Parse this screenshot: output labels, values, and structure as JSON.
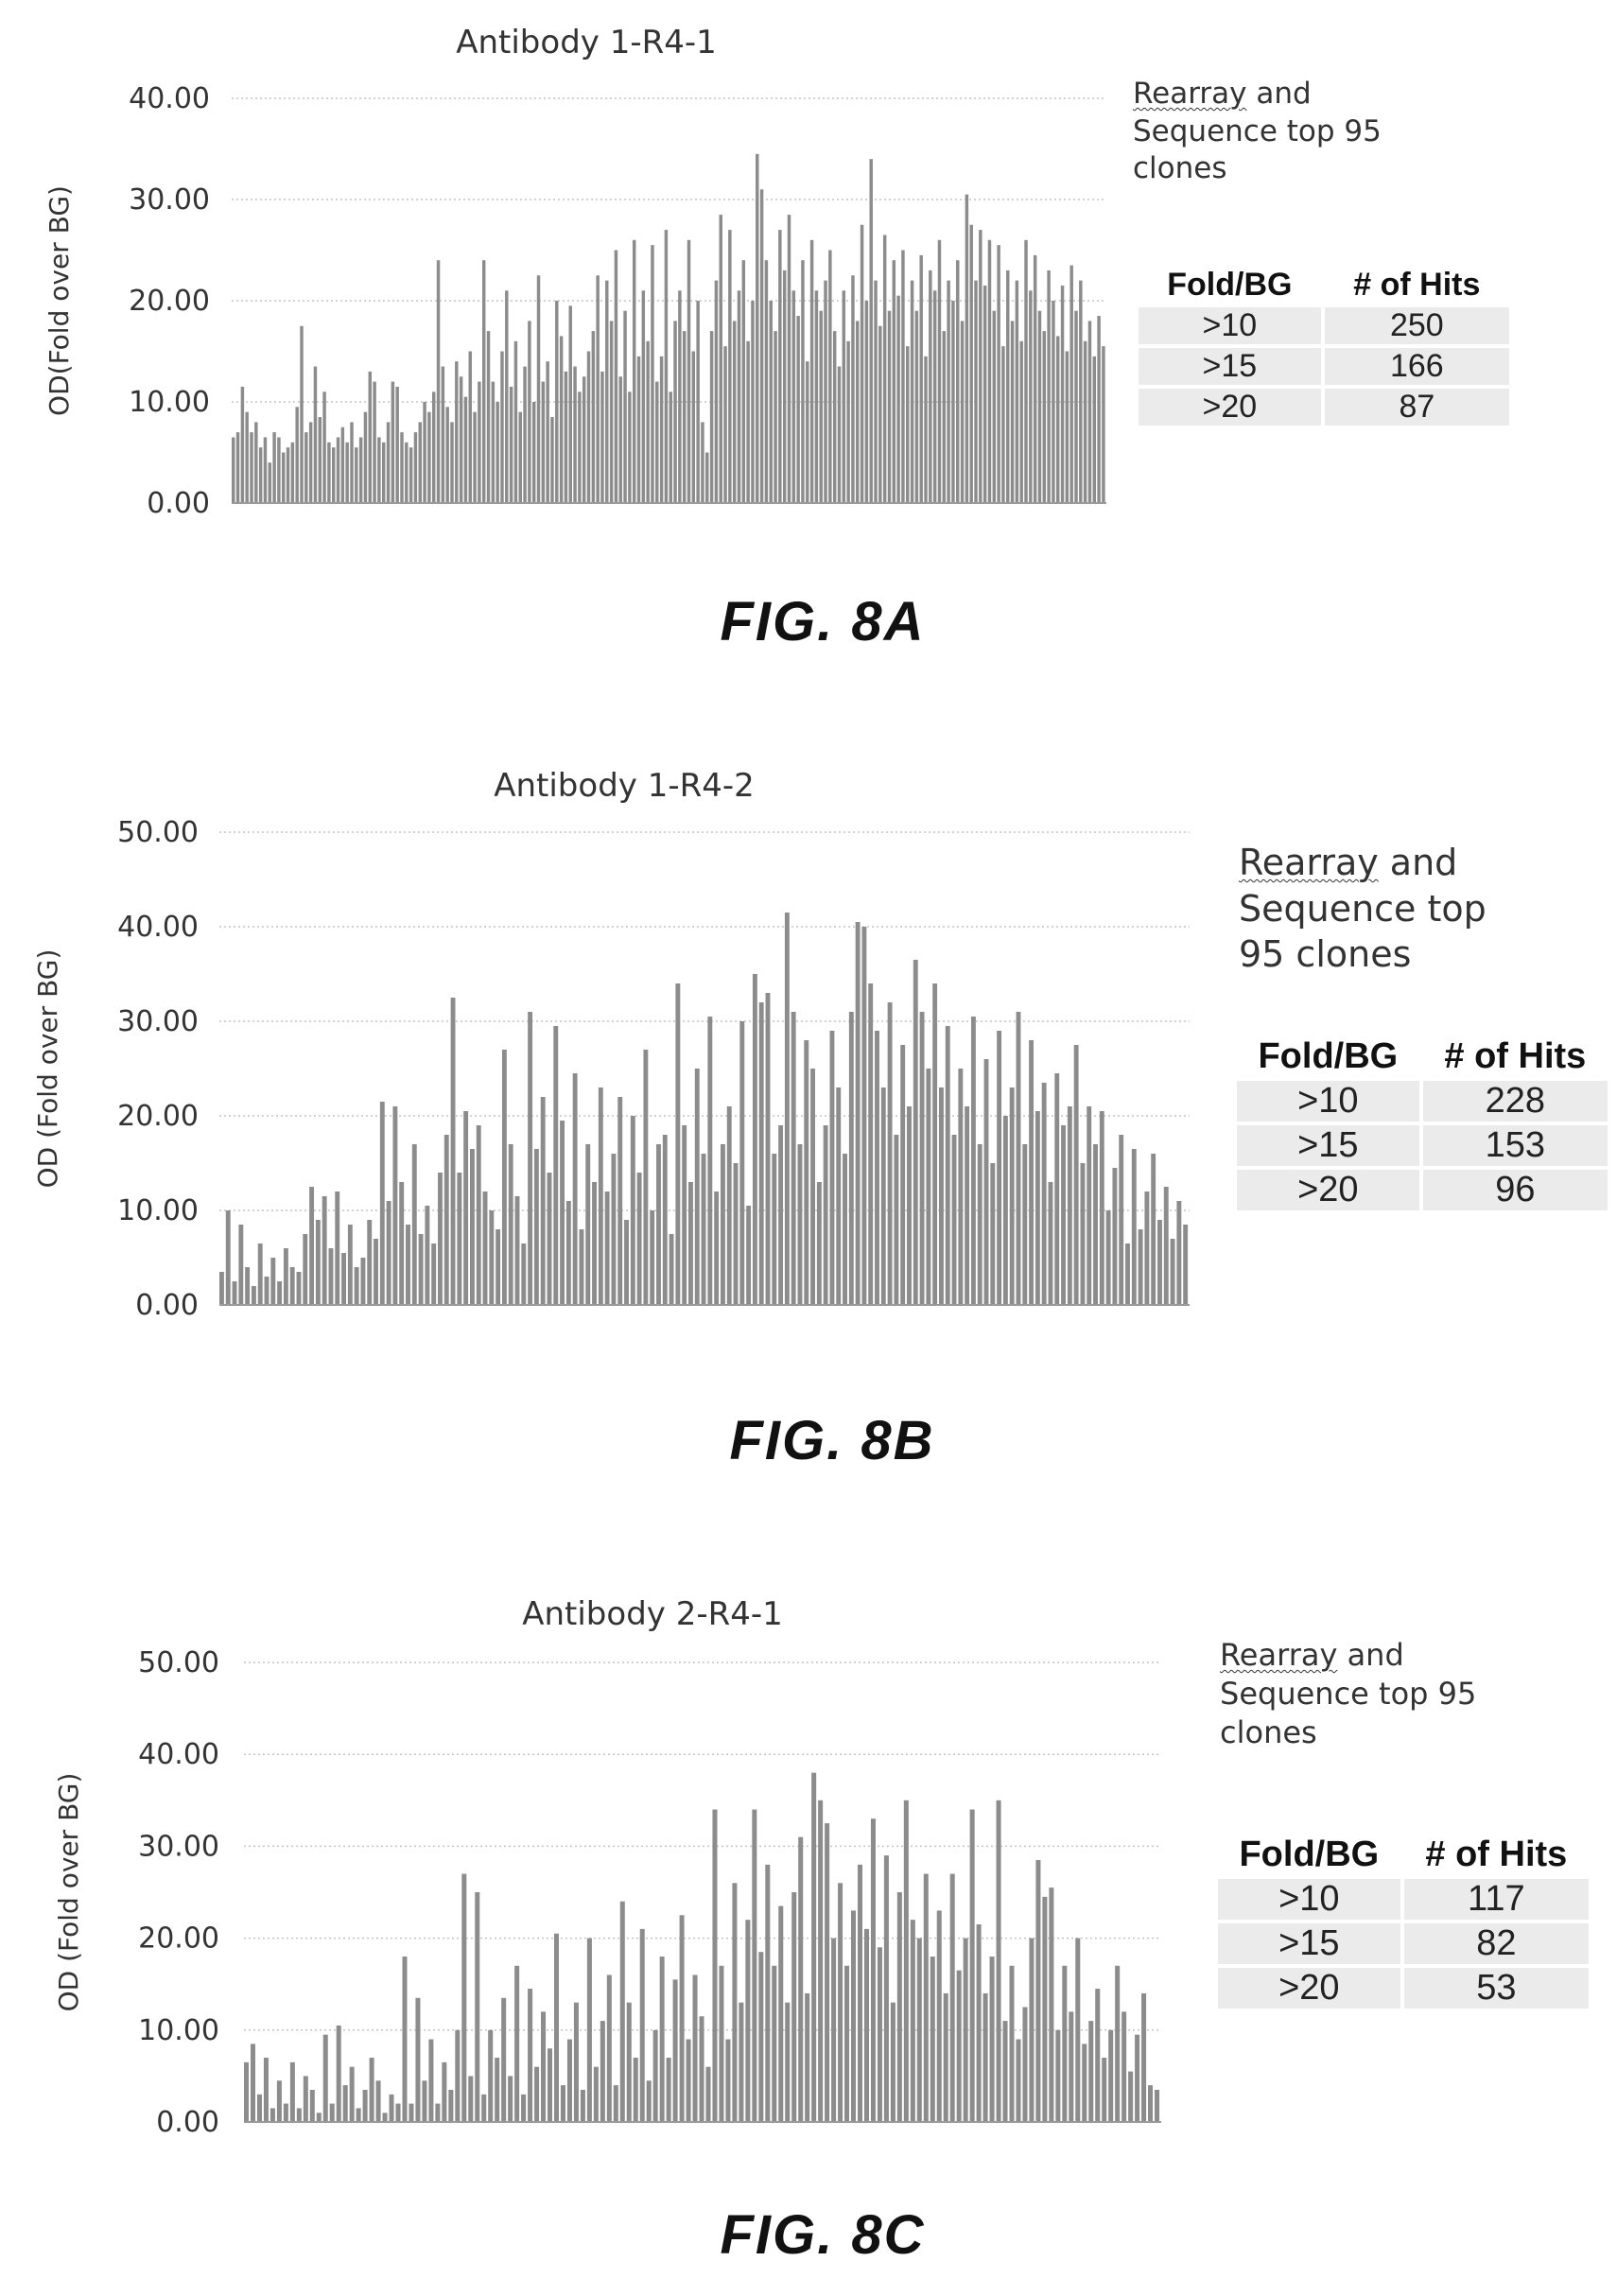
{
  "figures": [
    {
      "fig_label": "FIG. 8A",
      "note": {
        "line1_underlined": "Rearray",
        "line1_rest": " and",
        "line2": "Sequence top 95",
        "line3": "clones"
      },
      "table": {
        "headers": [
          "Fold/BG",
          "# of Hits"
        ],
        "rows": [
          [
            ">10",
            "250"
          ],
          [
            ">15",
            "166"
          ],
          [
            ">20",
            "87"
          ]
        ]
      }
    },
    {
      "fig_label": "FIG. 8B",
      "note": {
        "line1_underlined": "Rearray",
        "line1_rest": " and",
        "line2": "Sequence top",
        "line3": "95 clones"
      },
      "table": {
        "headers": [
          "Fold/BG",
          "# of Hits"
        ],
        "rows": [
          [
            ">10",
            "228"
          ],
          [
            ">15",
            "153"
          ],
          [
            ">20",
            "96"
          ]
        ]
      }
    },
    {
      "fig_label": "FIG. 8C",
      "note": {
        "line1_underlined": "Rearray",
        "line1_rest": " and",
        "line2": "Sequence top 95",
        "line3": "clones"
      },
      "table": {
        "headers": [
          "Fold/BG",
          "# of Hits"
        ],
        "rows": [
          [
            ">10",
            "117"
          ],
          [
            ">15",
            "82"
          ],
          [
            ">20",
            "53"
          ]
        ]
      }
    }
  ],
  "chart_data": [
    {
      "type": "bar",
      "title": "Antibody 1-R4-1",
      "ylabel": "OD(Fold over BG)",
      "xlabel": "",
      "ylim": [
        0,
        40
      ],
      "yticks": [
        "0.00",
        "10.00",
        "20.00",
        "30.00",
        "40.00"
      ],
      "grid": true,
      "bar_color": "#8c8c8c",
      "values": [
        6.5,
        7.0,
        11.5,
        9.0,
        7.0,
        8.0,
        5.5,
        6.5,
        4.0,
        7.0,
        6.5,
        5.0,
        5.5,
        6.0,
        9.5,
        17.5,
        7.0,
        8.0,
        13.5,
        8.5,
        11.0,
        6.0,
        5.5,
        6.5,
        7.5,
        6.0,
        8.0,
        5.5,
        6.5,
        9.0,
        13.0,
        12.0,
        6.5,
        6.0,
        8.0,
        12.0,
        11.5,
        7.0,
        6.0,
        5.5,
        7.0,
        8.0,
        10.0,
        9.0,
        11.0,
        24.0,
        13.5,
        9.5,
        8.0,
        14.0,
        12.5,
        10.5,
        15.0,
        9.0,
        12.0,
        24.0,
        17.0,
        12.0,
        10.0,
        15.0,
        21.0,
        11.5,
        16.0,
        9.0,
        13.5,
        18.0,
        10.0,
        22.5,
        12.0,
        14.0,
        8.5,
        20.0,
        16.5,
        13.0,
        19.5,
        13.5,
        11.0,
        12.5,
        15.0,
        17.0,
        22.5,
        13.0,
        22.0,
        18.0,
        25.0,
        12.5,
        19.0,
        11.0,
        26.0,
        14.5,
        21.0,
        16.0,
        25.5,
        12.0,
        14.5,
        27.0,
        11.0,
        18.0,
        21.0,
        17.0,
        26.0,
        15.0,
        20.0,
        8.0,
        5.0,
        17.0,
        22.0,
        28.5,
        15.5,
        27.0,
        18.0,
        21.0,
        24.0,
        16.0,
        20.0,
        34.5,
        31.0,
        24.0,
        20.0,
        17.0,
        27.0,
        23.0,
        28.5,
        21.0,
        18.5,
        24.0,
        14.0,
        26.0,
        21.0,
        19.0,
        22.0,
        25.0,
        17.0,
        13.5,
        21.0,
        16.0,
        22.5,
        18.0,
        27.5,
        20.0,
        34.0,
        22.0,
        17.5,
        26.5,
        19.0,
        24.0,
        20.5,
        25.0,
        15.5,
        22.0,
        19.0,
        24.5,
        14.5,
        23.0,
        21.0,
        26.0,
        17.0,
        22.0,
        20.0,
        24.0,
        18.0,
        30.5,
        27.5,
        22.0,
        27.0,
        21.5,
        26.0,
        19.0,
        25.5,
        15.5,
        23.0,
        18.0,
        22.0,
        16.0,
        26.0,
        21.0,
        24.5,
        19.0,
        17.0,
        23.0,
        20.0,
        16.5,
        21.5,
        15.0,
        23.5,
        19.0,
        22.0,
        16.0,
        18.0,
        14.5,
        18.5,
        15.5
      ]
    },
    {
      "type": "bar",
      "title": "Antibody 1-R4-2",
      "ylabel": "OD (Fold over BG)",
      "xlabel": "",
      "ylim": [
        0,
        50
      ],
      "yticks": [
        "0.00",
        "10.00",
        "20.00",
        "30.00",
        "40.00",
        "50.00"
      ],
      "grid": true,
      "bar_color": "#8c8c8c",
      "values": [
        3.5,
        10.0,
        2.5,
        8.5,
        4.0,
        2.0,
        6.5,
        3.0,
        5.0,
        2.5,
        6.0,
        4.0,
        3.5,
        7.5,
        12.5,
        9.0,
        11.5,
        6.0,
        12.0,
        5.5,
        8.5,
        4.0,
        5.0,
        9.0,
        7.0,
        21.5,
        11.0,
        21.0,
        13.0,
        8.5,
        17.0,
        7.5,
        10.5,
        6.5,
        14.0,
        18.0,
        32.5,
        14.0,
        20.5,
        16.5,
        19.0,
        12.0,
        10.0,
        8.0,
        27.0,
        17.0,
        11.5,
        6.5,
        31.0,
        16.5,
        22.0,
        14.0,
        29.5,
        19.5,
        11.0,
        24.5,
        8.0,
        17.0,
        13.0,
        23.0,
        12.0,
        16.0,
        22.0,
        9.0,
        20.0,
        14.0,
        27.0,
        10.0,
        17.0,
        18.0,
        7.5,
        34.0,
        19.0,
        13.0,
        25.0,
        16.0,
        30.5,
        12.0,
        17.0,
        21.0,
        15.0,
        30.0,
        10.5,
        35.0,
        32.0,
        33.0,
        16.0,
        19.0,
        41.5,
        31.0,
        17.0,
        28.0,
        25.0,
        13.0,
        19.0,
        29.0,
        23.0,
        16.0,
        31.0,
        40.5,
        40.0,
        34.0,
        29.0,
        23.0,
        32.0,
        18.0,
        27.5,
        21.0,
        36.5,
        31.0,
        25.0,
        34.0,
        23.0,
        29.5,
        18.0,
        25.0,
        21.0,
        30.5,
        17.0,
        26.0,
        15.0,
        29.0,
        20.0,
        23.0,
        31.0,
        17.0,
        28.0,
        20.5,
        23.5,
        13.0,
        24.5,
        19.0,
        21.0,
        27.5,
        15.0,
        21.0,
        17.0,
        20.5,
        10.0,
        14.5,
        18.0,
        6.5,
        16.5,
        8.0,
        12.0,
        16.0,
        9.0,
        12.5,
        7.0,
        11.0,
        8.5
      ]
    },
    {
      "type": "bar",
      "title": "Antibody 2-R4-1",
      "ylabel": "OD (Fold over BG)",
      "xlabel": "",
      "ylim": [
        0,
        50
      ],
      "yticks": [
        "0.00",
        "10.00",
        "20.00",
        "30.00",
        "40.00",
        "50.00"
      ],
      "grid": true,
      "bar_color": "#8c8c8c",
      "values": [
        6.5,
        8.5,
        3.0,
        7.0,
        1.5,
        4.5,
        2.0,
        6.5,
        1.5,
        5.0,
        3.5,
        1.0,
        9.5,
        2.0,
        10.5,
        4.0,
        6.0,
        1.5,
        3.5,
        7.0,
        4.5,
        1.0,
        3.0,
        2.0,
        18.0,
        2.0,
        13.5,
        4.5,
        9.0,
        2.0,
        6.5,
        3.5,
        10.0,
        27.0,
        5.0,
        25.0,
        3.0,
        10.0,
        7.0,
        13.5,
        5.0,
        17.0,
        3.0,
        14.5,
        6.0,
        12.0,
        8.0,
        20.5,
        4.0,
        9.0,
        13.0,
        3.5,
        20.0,
        6.0,
        11.0,
        16.0,
        4.0,
        24.0,
        13.0,
        7.0,
        21.0,
        4.5,
        10.0,
        18.0,
        7.0,
        15.5,
        22.5,
        9.0,
        16.0,
        11.5,
        6.0,
        34.0,
        17.0,
        9.0,
        26.0,
        13.0,
        22.0,
        34.0,
        18.5,
        28.0,
        17.0,
        23.5,
        13.0,
        25.0,
        31.0,
        14.0,
        38.0,
        35.0,
        32.5,
        20.0,
        26.0,
        17.0,
        23.0,
        28.0,
        21.0,
        33.0,
        19.0,
        29.0,
        13.0,
        25.0,
        35.0,
        22.0,
        20.0,
        27.0,
        18.0,
        23.0,
        14.0,
        27.0,
        16.5,
        20.0,
        34.0,
        21.5,
        14.0,
        18.0,
        35.0,
        11.0,
        17.0,
        9.0,
        12.5,
        20.0,
        28.5,
        24.5,
        25.5,
        10.0,
        17.0,
        12.0,
        20.0,
        8.5,
        11.0,
        14.5,
        7.0,
        10.0,
        17.0,
        12.0,
        5.5,
        9.5,
        14.0,
        4.0,
        3.5
      ]
    }
  ]
}
